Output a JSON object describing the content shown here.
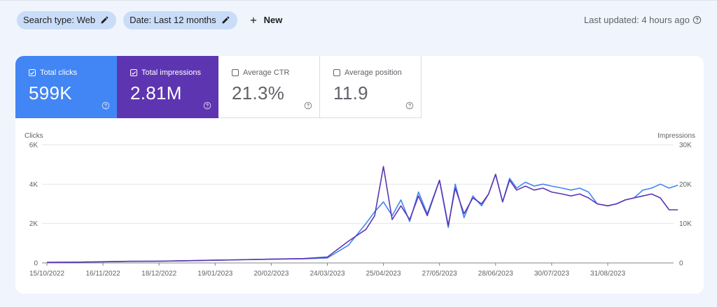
{
  "filters": {
    "search_type": "Search type: Web",
    "date": "Date: Last 12 months",
    "new_label": "New"
  },
  "last_updated": "Last updated: 4 hours ago",
  "metrics": [
    {
      "label": "Total clicks",
      "value": "599K",
      "checked": true,
      "color": "#4285f4"
    },
    {
      "label": "Total impressions",
      "value": "2.81M",
      "checked": true,
      "color": "#5e35b1"
    },
    {
      "label": "Average CTR",
      "value": "21.3%",
      "checked": false
    },
    {
      "label": "Average position",
      "value": "11.9",
      "checked": false
    }
  ],
  "chart_data": {
    "type": "line",
    "y_left_label": "Clicks",
    "y_right_label": "Impressions",
    "y_left_ticks": [
      "0",
      "2K",
      "4K",
      "6K"
    ],
    "y_right_ticks": [
      "0",
      "10K",
      "20K",
      "30K"
    ],
    "y_left_lim": [
      0,
      6000
    ],
    "y_right_lim": [
      0,
      30000
    ],
    "x_ticks": [
      "15/10/2022",
      "16/11/2022",
      "18/12/2022",
      "19/01/2023",
      "20/02/2023",
      "24/03/2023",
      "25/04/2023",
      "27/05/2023",
      "28/06/2023",
      "30/07/2023",
      "31/08/2023"
    ],
    "grid": true,
    "series": [
      {
        "name": "Clicks",
        "color": "#4285f4",
        "axis": "left",
        "x": [
          "15/10/2022",
          "01/11/2022",
          "16/11/2022",
          "01/12/2022",
          "18/12/2022",
          "01/01/2023",
          "19/01/2023",
          "01/02/2023",
          "20/02/2023",
          "10/03/2023",
          "24/03/2023",
          "05/04/2023",
          "15/04/2023",
          "20/04/2023",
          "25/04/2023",
          "30/04/2023",
          "05/05/2023",
          "10/05/2023",
          "15/05/2023",
          "20/05/2023",
          "27/05/2023",
          "01/06/2023",
          "05/06/2023",
          "10/06/2023",
          "15/06/2023",
          "20/06/2023",
          "24/06/2023",
          "28/06/2023",
          "02/07/2023",
          "06/07/2023",
          "10/07/2023",
          "15/07/2023",
          "20/07/2023",
          "25/07/2023",
          "30/07/2023",
          "05/08/2023",
          "10/08/2023",
          "15/08/2023",
          "20/08/2023",
          "25/08/2023",
          "31/08/2023",
          "05/09/2023",
          "10/09/2023",
          "15/09/2023",
          "20/09/2023",
          "25/09/2023",
          "30/09/2023",
          "05/10/2023",
          "10/10/2023"
        ],
        "values": [
          30,
          40,
          60,
          80,
          90,
          110,
          140,
          160,
          190,
          210,
          250,
          900,
          2000,
          2600,
          3100,
          2400,
          3200,
          2100,
          3600,
          2500,
          4200,
          1800,
          4000,
          2300,
          3400,
          2900,
          3500,
          4500,
          3100,
          4300,
          3800,
          4100,
          3900,
          4000,
          3900,
          3800,
          3700,
          3800,
          3600,
          3000,
          2900,
          3000,
          3200,
          3300,
          3700,
          3800,
          4000,
          3800,
          3950
        ]
      },
      {
        "name": "Impressions",
        "color": "#5e35b1",
        "axis": "right",
        "x": [
          "15/10/2022",
          "01/11/2022",
          "16/11/2022",
          "01/12/2022",
          "18/12/2022",
          "01/01/2023",
          "19/01/2023",
          "01/02/2023",
          "20/02/2023",
          "10/03/2023",
          "24/03/2023",
          "05/04/2023",
          "15/04/2023",
          "20/04/2023",
          "25/04/2023",
          "30/04/2023",
          "05/05/2023",
          "10/05/2023",
          "15/05/2023",
          "20/05/2023",
          "27/05/2023",
          "01/06/2023",
          "05/06/2023",
          "10/06/2023",
          "15/06/2023",
          "20/06/2023",
          "24/06/2023",
          "28/06/2023",
          "02/07/2023",
          "06/07/2023",
          "10/07/2023",
          "15/07/2023",
          "20/07/2023",
          "25/07/2023",
          "30/07/2023",
          "05/08/2023",
          "10/08/2023",
          "15/08/2023",
          "20/08/2023",
          "25/08/2023",
          "31/08/2023",
          "05/09/2023",
          "10/09/2023",
          "15/09/2023",
          "20/09/2023",
          "25/09/2023",
          "30/09/2023",
          "05/10/2023",
          "10/10/2023"
        ],
        "values": [
          150,
          200,
          300,
          400,
          450,
          550,
          700,
          800,
          950,
          1100,
          1500,
          5500,
          8500,
          12000,
          24500,
          11000,
          14500,
          11000,
          17000,
          12000,
          21000,
          9500,
          19000,
          12500,
          16500,
          15000,
          17500,
          22500,
          15500,
          21000,
          18500,
          19500,
          18500,
          19000,
          18000,
          17500,
          17000,
          17500,
          16500,
          15000,
          14500,
          15000,
          16000,
          16500,
          17000,
          17500,
          16500,
          13500,
          13500
        ]
      }
    ]
  }
}
